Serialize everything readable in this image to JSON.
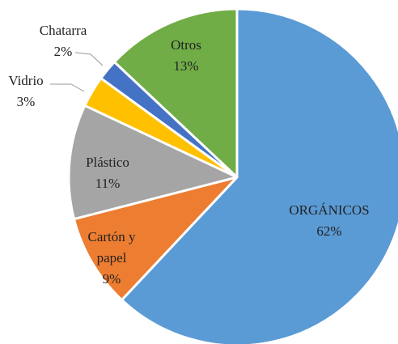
{
  "chart_data": {
    "type": "pie",
    "categories": [
      "ORGÁNICOS",
      "Cartón y papel",
      "Plástico",
      "Vidrio",
      "Chatarra",
      "Otros"
    ],
    "values": [
      62,
      9,
      11,
      3,
      2,
      13
    ],
    "value_labels": [
      "62%",
      "9%",
      "11%",
      "3%",
      "2%",
      "13%"
    ],
    "colors": [
      "#5b9bd5",
      "#ed7d31",
      "#a5a5a5",
      "#ffc000",
      "#4472c4",
      "#70ad47"
    ]
  }
}
